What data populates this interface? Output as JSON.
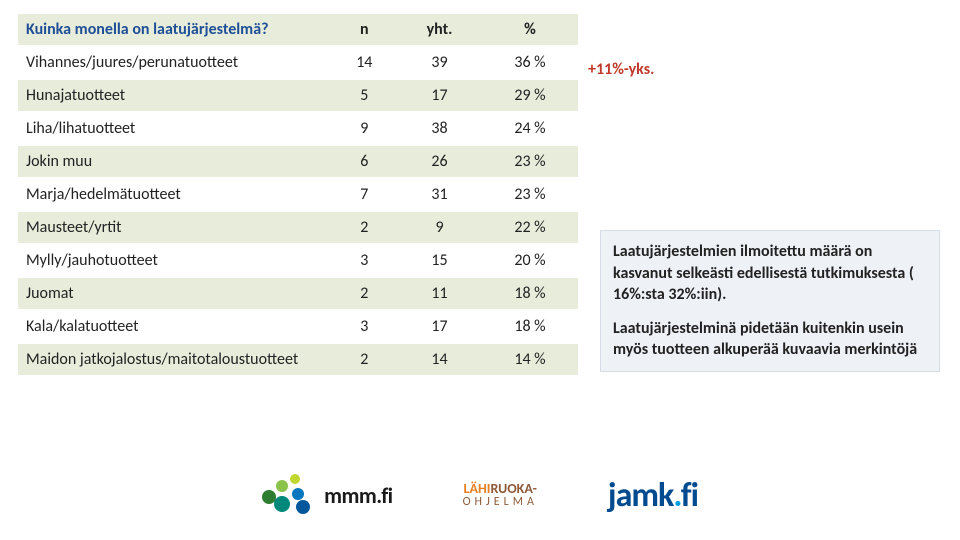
{
  "table": {
    "header": {
      "label": "Kuinka monella on laatujärjestelmä?",
      "cols": [
        "n",
        "yht.",
        "%"
      ]
    },
    "rows": [
      {
        "label": "Vihannes/juures/perunatuotteet",
        "n": "14",
        "yht": "39",
        "pct": "36 %",
        "band": false
      },
      {
        "label": "Hunajatuotteet",
        "n": "5",
        "yht": "17",
        "pct": "29 %",
        "band": true
      },
      {
        "label": "Liha/lihatuotteet",
        "n": "9",
        "yht": "38",
        "pct": "24 %",
        "band": false
      },
      {
        "label": "Jokin muu",
        "n": "6",
        "yht": "26",
        "pct": "23 %",
        "band": true
      },
      {
        "label": "Marja/hedelmätuotteet",
        "n": "7",
        "yht": "31",
        "pct": "23 %",
        "band": false
      },
      {
        "label": "Mausteet/yrtit",
        "n": "2",
        "yht": "9",
        "pct": "22 %",
        "band": true
      },
      {
        "label": "Mylly/jauhotuotteet",
        "n": "3",
        "yht": "15",
        "pct": "20 %",
        "band": false
      },
      {
        "label": "Juomat",
        "n": "2",
        "yht": "11",
        "pct": "18 %",
        "band": true
      },
      {
        "label": "Kala/kalatuotteet",
        "n": "3",
        "yht": "17",
        "pct": "18 %",
        "band": false
      },
      {
        "label": "Maidon jatkojalostus/maitotaloustuotteet",
        "n": "2",
        "yht": "14",
        "pct": "14 %",
        "band": true
      }
    ],
    "colors": {
      "band": "#e7ecdb",
      "header_text": "#1e4f97",
      "body_text": "#222222"
    }
  },
  "note": "+11%-yks.",
  "callout": {
    "p1": "Laatujärjestelmien ilmoitettu määrä on kasvanut selkeästi edellisestä tutkimuksesta ( 16%:sta 32%:iin).",
    "p2": "Laatujärjestelminä pidetään kuitenkin usein myös tuotteen alkuperää kuvaavia merkintöjä"
  },
  "logos": {
    "mmm": "mmm.fi",
    "lahiruoka_top_l": "LÄHI",
    "lahiruoka_top_r": "RUOKA-",
    "lahiruoka_bot": "OHJELMA",
    "jamk": "jamk.fi"
  }
}
